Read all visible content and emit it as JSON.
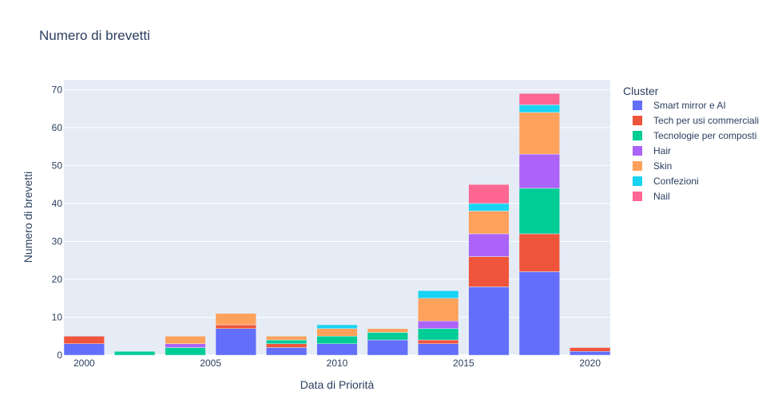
{
  "chart_data": {
    "type": "bar",
    "barmode": "stack",
    "title": "Numero di brevetti",
    "xlabel": "Data di Priorità",
    "ylabel": "Numero di brevetti",
    "legend_title": "Cluster",
    "legend_position": "right",
    "grid": true,
    "background": "#E5ECF6",
    "x": [
      2000,
      2002,
      2004,
      2006,
      2008,
      2010,
      2012,
      2014,
      2016,
      2018,
      2020
    ],
    "xlim": [
      1999.2,
      2020.8
    ],
    "xticks": [
      2000,
      2005,
      2010,
      2015,
      2020
    ],
    "ylim": [
      0,
      72.6
    ],
    "yticks": [
      0,
      10,
      20,
      30,
      40,
      50,
      60,
      70
    ],
    "series": [
      {
        "name": "Smart mirror e AI",
        "color": "#636EFA",
        "values": [
          3,
          0,
          0,
          7,
          2,
          3,
          4,
          3,
          18,
          22,
          1
        ]
      },
      {
        "name": "Tech per usi commerciali",
        "color": "#EF553B",
        "values": [
          2,
          0,
          0,
          1,
          1,
          0,
          0,
          1,
          8,
          10,
          1
        ]
      },
      {
        "name": "Tecnologie per composti",
        "color": "#00CC96",
        "values": [
          0,
          1,
          2,
          0,
          1,
          2,
          2,
          3,
          0,
          12,
          0
        ]
      },
      {
        "name": "Hair",
        "color": "#AB63FA",
        "values": [
          0,
          0,
          1,
          0,
          0,
          0,
          0,
          2,
          6,
          9,
          0
        ]
      },
      {
        "name": "Skin",
        "color": "#FFA15A",
        "values": [
          0,
          0,
          2,
          3,
          1,
          2,
          1,
          6,
          6,
          11,
          0
        ]
      },
      {
        "name": "Confezioni",
        "color": "#19D3F3",
        "values": [
          0,
          0,
          0,
          0,
          0,
          1,
          0,
          2,
          2,
          2,
          0
        ]
      },
      {
        "name": "Nail",
        "color": "#FF6692",
        "values": [
          0,
          0,
          0,
          0,
          0,
          0,
          0,
          0,
          5,
          3,
          0
        ]
      }
    ]
  }
}
